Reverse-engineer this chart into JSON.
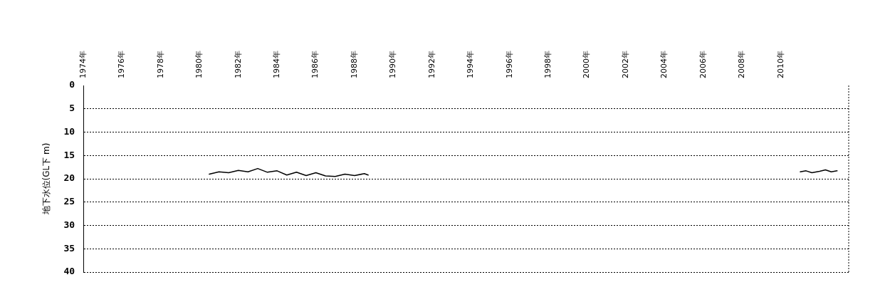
{
  "chart_data": {
    "type": "line",
    "ylabel": "地下水位(GL下 m)",
    "x": [
      1980.5,
      1981,
      1981.5,
      1982,
      1982.5,
      1983,
      1983.5,
      1984,
      1984.5,
      1985,
      1985.5,
      1986,
      1986.5,
      1987,
      1987.5,
      1988,
      1988.5,
      1988.7,
      1999,
      2011,
      2011.3,
      2011.6,
      2012,
      2012.3,
      2012.6,
      2012.9
    ],
    "series": [
      {
        "color": "#000000",
        "values": [
          19.0,
          18.5,
          18.7,
          18.2,
          18.5,
          17.8,
          18.6,
          18.3,
          19.2,
          18.6,
          19.3,
          18.7,
          19.4,
          19.5,
          19.0,
          19.3,
          18.9,
          19.2,
          null,
          18.5,
          18.3,
          18.7,
          18.4,
          18.1,
          18.5,
          18.3
        ]
      }
    ],
    "xlim": [
      1974,
      2013.5
    ],
    "xticks": [
      {
        "value": 1974,
        "label": "1974年"
      },
      {
        "value": 1976,
        "label": "1976年"
      },
      {
        "value": 1978,
        "label": "1978年"
      },
      {
        "value": 1980,
        "label": "1980年"
      },
      {
        "value": 1982,
        "label": "1982年"
      },
      {
        "value": 1984,
        "label": "1984年"
      },
      {
        "value": 1986,
        "label": "1986年"
      },
      {
        "value": 1988,
        "label": "1988年"
      },
      {
        "value": 1990,
        "label": "1990年"
      },
      {
        "value": 1992,
        "label": "1992年"
      },
      {
        "value": 1994,
        "label": "1994年"
      },
      {
        "value": 1996,
        "label": "1996年"
      },
      {
        "value": 1998,
        "label": "1998年"
      },
      {
        "value": 2000,
        "label": "2000年"
      },
      {
        "value": 2002,
        "label": "2002年"
      },
      {
        "value": 2004,
        "label": "2004年"
      },
      {
        "value": 2006,
        "label": "2006年"
      },
      {
        "value": 2008,
        "label": "2008年"
      },
      {
        "value": 2010,
        "label": "2010年"
      }
    ],
    "ylim": [
      40,
      0
    ],
    "yticks": [
      0,
      5,
      10,
      15,
      20,
      25,
      30,
      35,
      40
    ],
    "grid": "y",
    "legend": false,
    "marker": "none",
    "line_style": "solid"
  }
}
